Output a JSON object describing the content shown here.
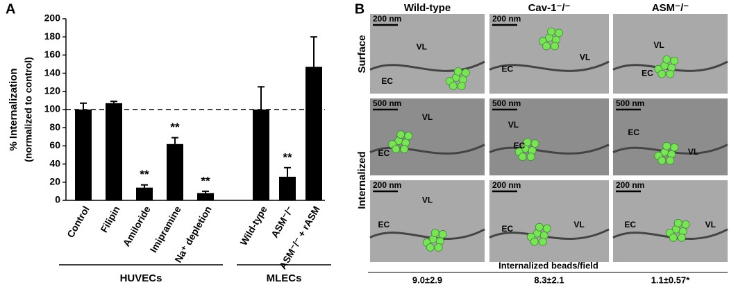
{
  "chart_data": {
    "type": "bar",
    "panel_label": "A",
    "ylabel": "% Internalization",
    "ylabel2": "(normalized to control)",
    "categories": [
      "Control",
      "Filipin",
      "Amiloride",
      "Imipramine",
      "Na⁺ depletion",
      "Wild-type",
      "ASM⁻/⁻",
      "ASM⁻/⁻ + rASM"
    ],
    "values": [
      100,
      107,
      14,
      62,
      8,
      100,
      26,
      147
    ],
    "errors": [
      7,
      2,
      3,
      7,
      2,
      25,
      10,
      33
    ],
    "significance": [
      null,
      null,
      "**",
      "**",
      "**",
      null,
      "**",
      null
    ],
    "color": "#000000",
    "reference_line": 100,
    "ylim": [
      0,
      200
    ],
    "yticks": [
      0,
      20,
      40,
      60,
      80,
      100,
      120,
      140,
      160,
      180,
      200
    ],
    "groups": [
      {
        "name": "HUVECs",
        "count": 5
      },
      {
        "name": "MLECs",
        "count": 3
      }
    ]
  },
  "panel_b": {
    "label": "B",
    "columns": [
      "Wild-type",
      "Cav-1⁻/⁻",
      "ASM⁻/⁻"
    ],
    "rows": [
      "Surface",
      "Internalized"
    ],
    "images": [
      {
        "scale": "200 nm",
        "labels": [
          "VL",
          "EC"
        ]
      },
      {
        "scale": "200 nm",
        "labels": [
          "VL",
          "EC"
        ]
      },
      {
        "labels": [
          "VL",
          "EC"
        ]
      },
      {
        "scale": "500 nm",
        "labels": [
          "VL",
          "EC"
        ]
      },
      {
        "scale": "500 nm",
        "labels": [
          "VL",
          "EC"
        ]
      },
      {
        "scale": "500 nm",
        "labels": [
          "VL",
          "EC"
        ]
      },
      {
        "scale": "200 nm",
        "labels": [
          "VL",
          "EC"
        ]
      },
      {
        "scale": "200 nm",
        "labels": [
          "VL",
          "EC"
        ]
      },
      {
        "scale": "200 nm",
        "labels": [
          "VL",
          "EC"
        ]
      }
    ],
    "footer_title": "Internalized beads/field",
    "footer_values": [
      "9.0±2.9",
      "8.3±2.1",
      "1.1±0.57*"
    ]
  }
}
